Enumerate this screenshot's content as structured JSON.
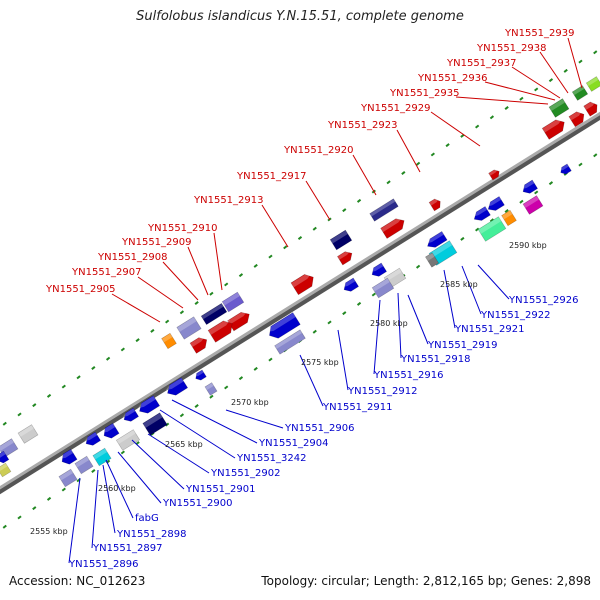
{
  "title": "Sulfolobus islandicus Y.N.15.51, complete genome",
  "footer": {
    "accession": "Accession: NC_012623",
    "topology": "Topology: circular; Length: 2,812,165 bp; Genes: 2,898"
  },
  "colors": {
    "top_label": "#cc0000",
    "bottom_label": "#0000cc",
    "backbone": "#888888",
    "tick": "#228822"
  },
  "kbp_labels": [
    "2555 kbp",
    "2560 kbp",
    "2565 kbp",
    "2570 kbp",
    "2575 kbp",
    "2580 kbp",
    "2585 kbp",
    "2590 kbp"
  ],
  "top_labels": [
    "YN1551_2939",
    "YN1551_2938",
    "YN1551_2937",
    "YN1551_2936",
    "YN1551_2935",
    "YN1551_2929",
    "YN1551_2923",
    "YN1551_2920",
    "YN1551_2917",
    "YN1551_2913",
    "YN1551_2910",
    "YN1551_2909",
    "YN1551_2908",
    "YN1551_2907",
    "YN1551_2905"
  ],
  "bottom_labels": [
    "YN1551_2926",
    "YN1551_2922",
    "YN1551_2921",
    "YN1551_2919",
    "YN1551_2918",
    "YN1551_2916",
    "YN1551_2912",
    "YN1551_2911",
    "YN1551_2906",
    "YN1551_2904",
    "YN1551_3242",
    "YN1551_2902",
    "YN1551_2901",
    "YN1551_2900",
    "fabG",
    "YN1551_2898",
    "YN1551_2897",
    "YN1551_2896"
  ]
}
